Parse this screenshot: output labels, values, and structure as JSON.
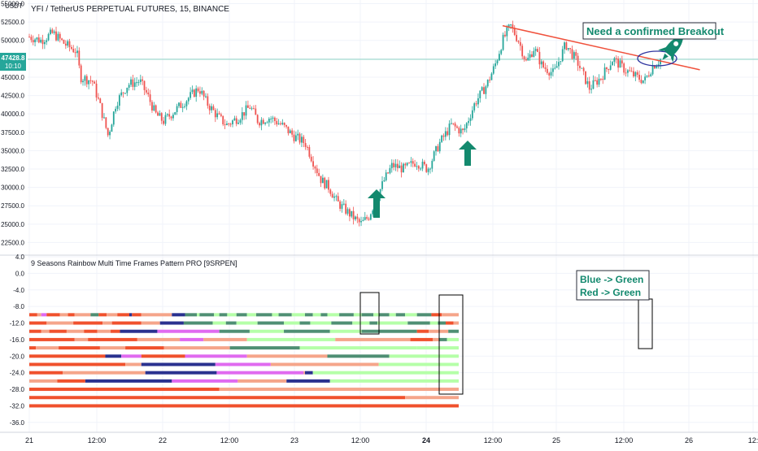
{
  "header": {
    "title": "YFI / TetherUS PERPETUAL FUTURES, 15, BINANCE",
    "currency": "USDT",
    "price_badge": "47428.8",
    "countdown": "10:10"
  },
  "indicator": {
    "title": "9 Seasons Rainbow Multi Time Frames Pattern PRO [9SRPEN]"
  },
  "annotations": {
    "breakout_note": "Need a confirmed Breakout",
    "transition_line1": "Blue -> Green",
    "transition_line2": "Red -> Green"
  },
  "colors": {
    "up": "#26a69a",
    "down": "#ef5350",
    "trend_line": "#f0513c",
    "arrow": "#13896e",
    "price_line": "#8fd4c4",
    "dark_red": "#f0512d",
    "light_red": "#f5a58a",
    "pink": "#e06af0",
    "blue": "#2a318f",
    "dark_green": "#4f8f74",
    "light_green": "#b5ffa8",
    "ellipse": "#2f36a0"
  },
  "chart_data": [
    {
      "type": "candlestick",
      "title": "YFI / TetherUS PERPETUAL FUTURES, 15, BINANCE",
      "ylabel": "USDT",
      "x_ticks": [
        "21",
        "12:00",
        "22",
        "12:00",
        "23",
        "12:00",
        "24",
        "12:00",
        "25",
        "12:00",
        "26",
        "12:"
      ],
      "y_ticks": [
        22500,
        25000,
        27500,
        30000,
        32500,
        35000,
        37500,
        40000,
        42500,
        45000,
        47500,
        50000,
        52500,
        55000
      ],
      "y_tick_labels": [
        "22500.0",
        "25000.0",
        "27500.0",
        "30000.0",
        "32500.0",
        "35000.0",
        "37500.0",
        "40000.0",
        "42500.0",
        "45000.0",
        "47500.0",
        "50000.0",
        "52500.0",
        "55000.0"
      ],
      "ylim": [
        21000,
        55500
      ],
      "last_price": 47428.8,
      "approx_close_path": [
        [
          0,
          50500
        ],
        [
          3,
          50000
        ],
        [
          6,
          51000
        ],
        [
          9,
          49500
        ],
        [
          12,
          48500
        ],
        [
          13,
          45000
        ],
        [
          16,
          44500
        ],
        [
          18,
          41000
        ],
        [
          20,
          37000
        ],
        [
          22,
          41500
        ],
        [
          25,
          44000
        ],
        [
          28,
          44500
        ],
        [
          30,
          42500
        ],
        [
          32,
          40000
        ],
        [
          34,
          39000
        ],
        [
          37,
          40500
        ],
        [
          40,
          42000
        ],
        [
          43,
          43500
        ],
        [
          45,
          41500
        ],
        [
          48,
          39500
        ],
        [
          50,
          38500
        ],
        [
          53,
          39500
        ],
        [
          56,
          41000
        ],
        [
          58,
          39000
        ],
        [
          61,
          39500
        ],
        [
          64,
          38500
        ],
        [
          67,
          37000
        ],
        [
          70,
          36000
        ],
        [
          72,
          33500
        ],
        [
          74,
          31000
        ],
        [
          76,
          30000
        ],
        [
          78,
          28000
        ],
        [
          80,
          27000
        ],
        [
          82,
          26000
        ],
        [
          84,
          25000
        ],
        [
          86,
          26000
        ],
        [
          88,
          28500
        ],
        [
          90,
          31000
        ],
        [
          92,
          33000
        ],
        [
          95,
          32500
        ],
        [
          98,
          33500
        ],
        [
          101,
          32500
        ],
        [
          104,
          36000
        ],
        [
          107,
          38500
        ],
        [
          110,
          37500
        ],
        [
          113,
          41500
        ],
        [
          116,
          44000
        ],
        [
          118,
          46500
        ],
        [
          120,
          50000
        ],
        [
          122,
          52000
        ],
        [
          124,
          50000
        ],
        [
          126,
          47000
        ],
        [
          128,
          49000
        ],
        [
          130,
          46500
        ],
        [
          133,
          45500
        ],
        [
          136,
          49500
        ],
        [
          139,
          47000
        ],
        [
          142,
          43500
        ],
        [
          145,
          45000
        ],
        [
          148,
          47500
        ],
        [
          151,
          46000
        ],
        [
          154,
          45000
        ],
        [
          156,
          44500
        ],
        [
          158,
          46500
        ],
        [
          160,
          47400
        ]
      ],
      "trend_line": [
        [
          120,
          52000
        ],
        [
          170,
          46000
        ]
      ],
      "annotations": [
        "Need a confirmed Breakout"
      ]
    },
    {
      "type": "heatmap",
      "title": "9 Seasons Rainbow Multi Time Frames Pattern PRO [9SRPEN]",
      "x_ticks": [
        "21",
        "12:00",
        "22",
        "12:00",
        "23",
        "12:00",
        "24",
        "12:00",
        "25",
        "12:00",
        "26",
        "12:"
      ],
      "y_ticks": [
        4,
        0,
        -4,
        -8,
        -12,
        -16,
        -20,
        -24,
        -28,
        -32,
        -36
      ],
      "y_tick_labels": [
        "4.0",
        "0.0",
        "-4.0",
        "-8.0",
        "-12.0",
        "-16.0",
        "-20.0",
        "-24.0",
        "-28.0",
        "-32.0",
        "-36.0"
      ],
      "ylim": [
        -38,
        4
      ],
      "legend_note": [
        "Blue -> Green",
        "Red -> Green"
      ],
      "rows": [
        {
          "level": -10,
          "segments": [
            [
              "red",
              0,
              0.06
            ],
            [
              "light_red",
              0.06,
              0.09
            ],
            [
              "pink",
              0.09,
              0.13
            ],
            [
              "red",
              0.13,
              0.23
            ],
            [
              "light_red",
              0.23,
              0.29
            ],
            [
              "red",
              0.29,
              0.34
            ],
            [
              "light_red",
              0.34,
              0.46
            ],
            [
              "dark_green",
              0.46,
              0.52
            ],
            [
              "red",
              0.52,
              0.58
            ],
            [
              "light_red",
              0.58,
              0.66
            ],
            [
              "red",
              0.66,
              0.75
            ],
            [
              "blue",
              0.75,
              0.77
            ],
            [
              "red",
              0.77,
              0.84
            ],
            [
              "light_red",
              0.84,
              1.07
            ],
            [
              "blue",
              1.07,
              1.17
            ],
            [
              "dark_green",
              1.17,
              1.26
            ],
            [
              "light_green",
              1.26,
              1.28
            ],
            [
              "dark_green",
              1.28,
              1.39
            ],
            [
              "light_green",
              1.39,
              1.43
            ],
            [
              "dark_green",
              1.43,
              1.49
            ],
            [
              "light_green",
              1.49,
              1.56
            ],
            [
              "dark_green",
              1.56,
              1.64
            ],
            [
              "light_green",
              1.64,
              1.71
            ],
            [
              "dark_green",
              1.71,
              1.83
            ],
            [
              "light_green",
              1.83,
              1.88
            ],
            [
              "dark_green",
              1.88,
              1.98
            ],
            [
              "light_green",
              1.98,
              2.08
            ],
            [
              "dark_green",
              2.08,
              2.14
            ],
            [
              "light_green",
              2.14,
              2.2
            ],
            [
              "dark_green",
              2.2,
              2.25
            ],
            [
              "light_green",
              2.25,
              2.34
            ],
            [
              "dark_green",
              2.34,
              2.45
            ],
            [
              "light_green",
              2.45,
              2.51
            ],
            [
              "dark_green",
              2.51,
              2.6
            ],
            [
              "light_green",
              2.6,
              2.64
            ],
            [
              "dark_green",
              2.64,
              2.72
            ],
            [
              "light_green",
              2.72,
              2.77
            ],
            [
              "dark_green",
              2.77,
              2.84
            ],
            [
              "light_green",
              2.84,
              2.93
            ],
            [
              "dark_green",
              2.93,
              3.04
            ],
            [
              "red",
              3.04,
              3.12
            ],
            [
              "light_red",
              3.12,
              3.25
            ]
          ]
        },
        {
          "level": -12,
          "segments": [
            [
              "red",
              0,
              0.13
            ],
            [
              "light_red",
              0.13,
              0.33
            ],
            [
              "red",
              0.33,
              0.55
            ],
            [
              "light_red",
              0.55,
              0.62
            ],
            [
              "red",
              0.62,
              0.84
            ],
            [
              "light_red",
              0.84,
              0.98
            ],
            [
              "blue",
              0.98,
              1.16
            ],
            [
              "dark_green",
              1.16,
              1.38
            ],
            [
              "light_green",
              1.38,
              1.48
            ],
            [
              "dark_green",
              1.48,
              1.56
            ],
            [
              "light_green",
              1.56,
              1.72
            ],
            [
              "dark_green",
              1.72,
              1.92
            ],
            [
              "light_green",
              1.92,
              2.04
            ],
            [
              "dark_green",
              2.04,
              2.12
            ],
            [
              "light_green",
              2.12,
              2.28
            ],
            [
              "dark_green",
              2.28,
              2.44
            ],
            [
              "light_green",
              2.44,
              2.57
            ],
            [
              "dark_green",
              2.57,
              2.63
            ],
            [
              "light_green",
              2.63,
              2.86
            ],
            [
              "dark_green",
              2.86,
              3.03
            ],
            [
              "light_green",
              3.03,
              3.09
            ],
            [
              "dark_green",
              3.09,
              3.15
            ],
            [
              "red",
              3.15,
              3.21
            ],
            [
              "light_red",
              3.21,
              3.25
            ]
          ]
        },
        {
          "level": -14,
          "segments": [
            [
              "red",
              0,
              0.09
            ],
            [
              "light_red",
              0.09,
              0.15
            ],
            [
              "red",
              0.15,
              0.28
            ],
            [
              "light_red",
              0.28,
              0.41
            ],
            [
              "red",
              0.41,
              0.51
            ],
            [
              "light_red",
              0.51,
              0.61
            ],
            [
              "red",
              0.61,
              0.68
            ],
            [
              "blue",
              0.68,
              0.96
            ],
            [
              "pink",
              0.96,
              1.43
            ],
            [
              "dark_green",
              1.43,
              1.66
            ],
            [
              "light_green",
              1.66,
              1.92
            ],
            [
              "dark_green",
              1.92,
              2.27
            ],
            [
              "light_green",
              2.27,
              2.51
            ],
            [
              "dark_green",
              2.51,
              2.93
            ],
            [
              "red",
              2.93,
              3.02
            ],
            [
              "light_red",
              3.02,
              3.17
            ],
            [
              "dark_green",
              3.17,
              3.25
            ]
          ]
        },
        {
          "level": -16,
          "segments": [
            [
              "red",
              0,
              0.34
            ],
            [
              "light_red",
              0.34,
              0.44
            ],
            [
              "red",
              0.44,
              0.81
            ],
            [
              "light_red",
              0.81,
              1.13
            ],
            [
              "pink",
              1.13,
              1.31
            ],
            [
              "light_red",
              1.31,
              1.64
            ],
            [
              "light_green",
              1.64,
              2.31
            ],
            [
              "light_red",
              2.31,
              2.88
            ],
            [
              "red",
              2.88,
              3.05
            ],
            [
              "light_red",
              3.05,
              3.1
            ],
            [
              "dark_green",
              3.1,
              3.16
            ],
            [
              "light_green",
              3.16,
              3.25
            ]
          ]
        },
        {
          "level": -18,
          "segments": [
            [
              "red",
              0,
              0.05
            ],
            [
              "light_red",
              0.05,
              0.22
            ],
            [
              "red",
              0.22,
              0.53
            ],
            [
              "light_red",
              0.53,
              0.72
            ],
            [
              "red",
              0.72,
              1.01
            ],
            [
              "light_red",
              1.01,
              1.51
            ],
            [
              "dark_green",
              1.51,
              2.04
            ],
            [
              "light_green",
              2.04,
              2.93
            ],
            [
              "light_green",
              2.93,
              3.25
            ]
          ]
        },
        {
          "level": -20,
          "segments": [
            [
              "red",
              0,
              0.57
            ],
            [
              "blue",
              0.57,
              0.69
            ],
            [
              "pink",
              0.69,
              0.84
            ],
            [
              "red",
              0.84,
              1.17
            ],
            [
              "pink",
              1.17,
              1.64
            ],
            [
              "light_red",
              1.64,
              2.25
            ],
            [
              "dark_green",
              2.25,
              2.72
            ],
            [
              "light_green",
              2.72,
              3.25
            ]
          ]
        },
        {
          "level": -22,
          "segments": [
            [
              "red",
              0,
              0.72
            ],
            [
              "light_red",
              0.72,
              0.84
            ],
            [
              "blue",
              0.84,
              1.4
            ],
            [
              "pink",
              1.4,
              1.82
            ],
            [
              "light_red",
              1.82,
              2.64
            ],
            [
              "light_green",
              2.64,
              3.25
            ]
          ]
        },
        {
          "level": -24,
          "segments": [
            [
              "red",
              0,
              0.25
            ],
            [
              "light_red",
              0.25,
              0.87
            ],
            [
              "blue",
              0.87,
              1.41
            ],
            [
              "pink",
              1.41,
              2.07
            ],
            [
              "light_red",
              2.07,
              2.08
            ],
            [
              "blue",
              2.08,
              2.14
            ],
            [
              "light_green",
              2.14,
              3.25
            ]
          ]
        },
        {
          "level": -26,
          "segments": [
            [
              "light_red",
              0,
              0.21
            ],
            [
              "red",
              0.21,
              0.42
            ],
            [
              "blue",
              0.42,
              1.07
            ],
            [
              "pink",
              1.07,
              1.57
            ],
            [
              "light_red",
              1.57,
              1.94
            ],
            [
              "blue",
              1.94,
              2.27
            ],
            [
              "light_green",
              2.27,
              3.25
            ]
          ]
        },
        {
          "level": -28,
          "segments": [
            [
              "red",
              0,
              1.43
            ],
            [
              "light_red",
              1.43,
              3.25
            ]
          ]
        },
        {
          "level": -30,
          "segments": [
            [
              "red",
              0,
              2.84
            ],
            [
              "light_red",
              2.84,
              3.25
            ]
          ]
        },
        {
          "level": -32,
          "segments": [
            [
              "red",
              0,
              3.25
            ]
          ]
        }
      ]
    }
  ]
}
